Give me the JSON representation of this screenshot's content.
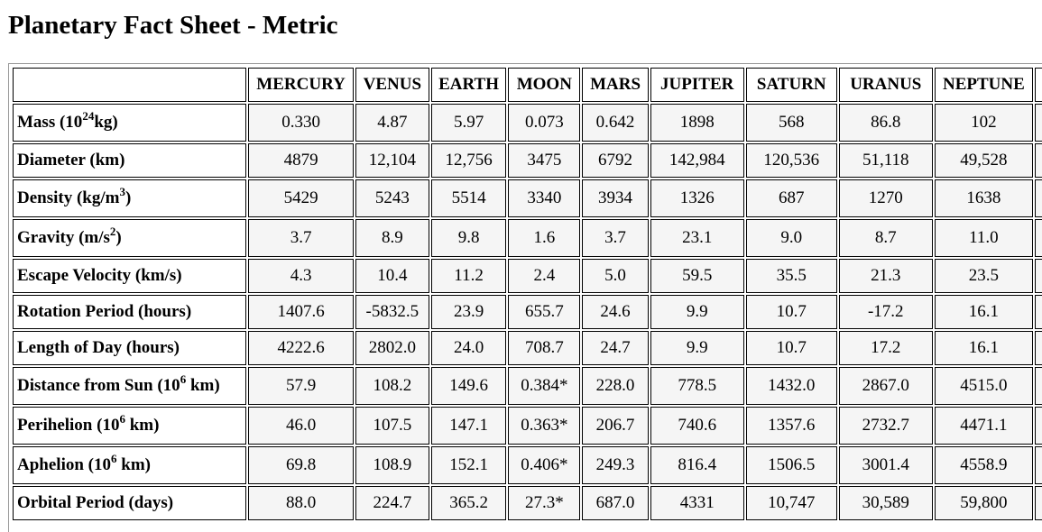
{
  "page": {
    "title": "Planetary Fact Sheet - Metric"
  },
  "table": {
    "columns": [
      "MERCURY",
      "VENUS",
      "EARTH",
      "MOON",
      "MARS",
      "JUPITER",
      "SATURN",
      "URANUS",
      "NEPTUNE"
    ],
    "rows": [
      {
        "label_pre": "Mass (10",
        "label_sup": "24",
        "label_post": "kg)",
        "values": [
          "0.330",
          "4.87",
          "5.97",
          "0.073",
          "0.642",
          "1898",
          "568",
          "86.8",
          "102"
        ]
      },
      {
        "label_pre": "Diameter (km)",
        "label_sup": "",
        "label_post": "",
        "values": [
          "4879",
          "12,104",
          "12,756",
          "3475",
          "6792",
          "142,984",
          "120,536",
          "51,118",
          "49,528"
        ]
      },
      {
        "label_pre": "Density (kg/m",
        "label_sup": "3",
        "label_post": ")",
        "values": [
          "5429",
          "5243",
          "5514",
          "3340",
          "3934",
          "1326",
          "687",
          "1270",
          "1638"
        ]
      },
      {
        "label_pre": "Gravity (m/s",
        "label_sup": "2",
        "label_post": ")",
        "values": [
          "3.7",
          "8.9",
          "9.8",
          "1.6",
          "3.7",
          "23.1",
          "9.0",
          "8.7",
          "11.0"
        ]
      },
      {
        "label_pre": "Escape Velocity (km/s)",
        "label_sup": "",
        "label_post": "",
        "values": [
          "4.3",
          "10.4",
          "11.2",
          "2.4",
          "5.0",
          "59.5",
          "35.5",
          "21.3",
          "23.5"
        ]
      },
      {
        "label_pre": "Rotation Period (hours)",
        "label_sup": "",
        "label_post": "",
        "values": [
          "1407.6",
          "-5832.5",
          "23.9",
          "655.7",
          "24.6",
          "9.9",
          "10.7",
          "-17.2",
          "16.1"
        ]
      },
      {
        "label_pre": "Length of Day (hours)",
        "label_sup": "",
        "label_post": "",
        "values": [
          "4222.6",
          "2802.0",
          "24.0",
          "708.7",
          "24.7",
          "9.9",
          "10.7",
          "17.2",
          "16.1"
        ]
      },
      {
        "label_pre": "Distance from Sun (10",
        "label_sup": "6",
        "label_post": " km)",
        "values": [
          "57.9",
          "108.2",
          "149.6",
          "0.384*",
          "228.0",
          "778.5",
          "1432.0",
          "2867.0",
          "4515.0"
        ]
      },
      {
        "label_pre": "Perihelion (10",
        "label_sup": "6",
        "label_post": " km)",
        "values": [
          "46.0",
          "107.5",
          "147.1",
          "0.363*",
          "206.7",
          "740.6",
          "1357.6",
          "2732.7",
          "4471.1"
        ]
      },
      {
        "label_pre": "Aphelion (10",
        "label_sup": "6",
        "label_post": " km)",
        "values": [
          "69.8",
          "108.9",
          "152.1",
          "0.406*",
          "249.3",
          "816.4",
          "1506.5",
          "3001.4",
          "4558.9"
        ]
      },
      {
        "label_pre": "Orbital Period (days)",
        "label_sup": "",
        "label_post": "",
        "values": [
          "88.0",
          "224.7",
          "365.2",
          "27.3*",
          "687.0",
          "4331",
          "10,747",
          "30,589",
          "59,800"
        ]
      }
    ]
  }
}
